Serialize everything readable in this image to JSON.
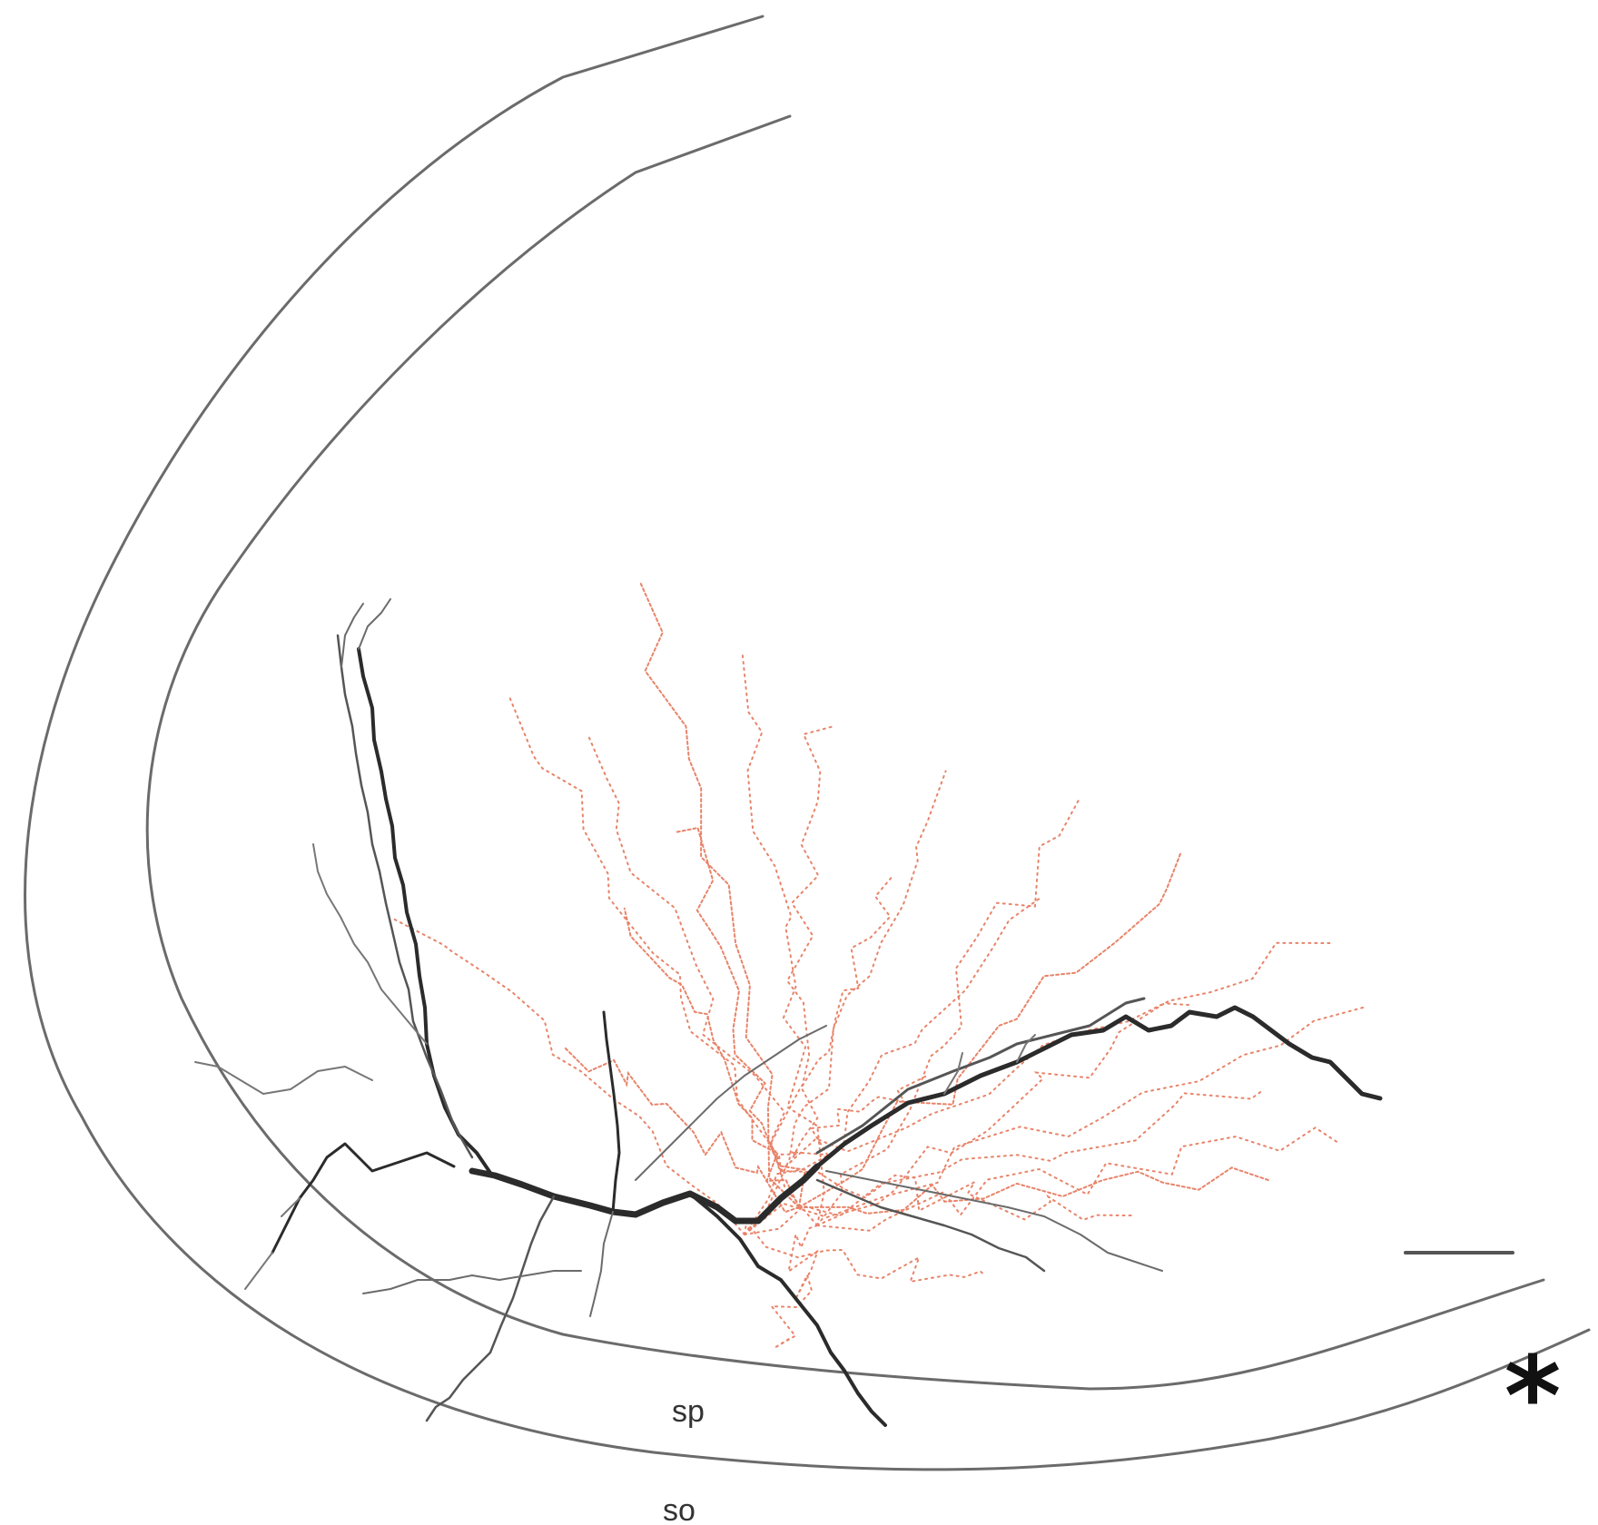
{
  "labels": {
    "layer_sp": "sp",
    "layer_so": "so",
    "marker": "*"
  },
  "colors": {
    "background": "#ffffff",
    "boundary": "#6b6b6b",
    "dendrite": "#2b2b2b",
    "dendrite_light": "#7a7a7a",
    "axon": "#e8846a"
  }
}
